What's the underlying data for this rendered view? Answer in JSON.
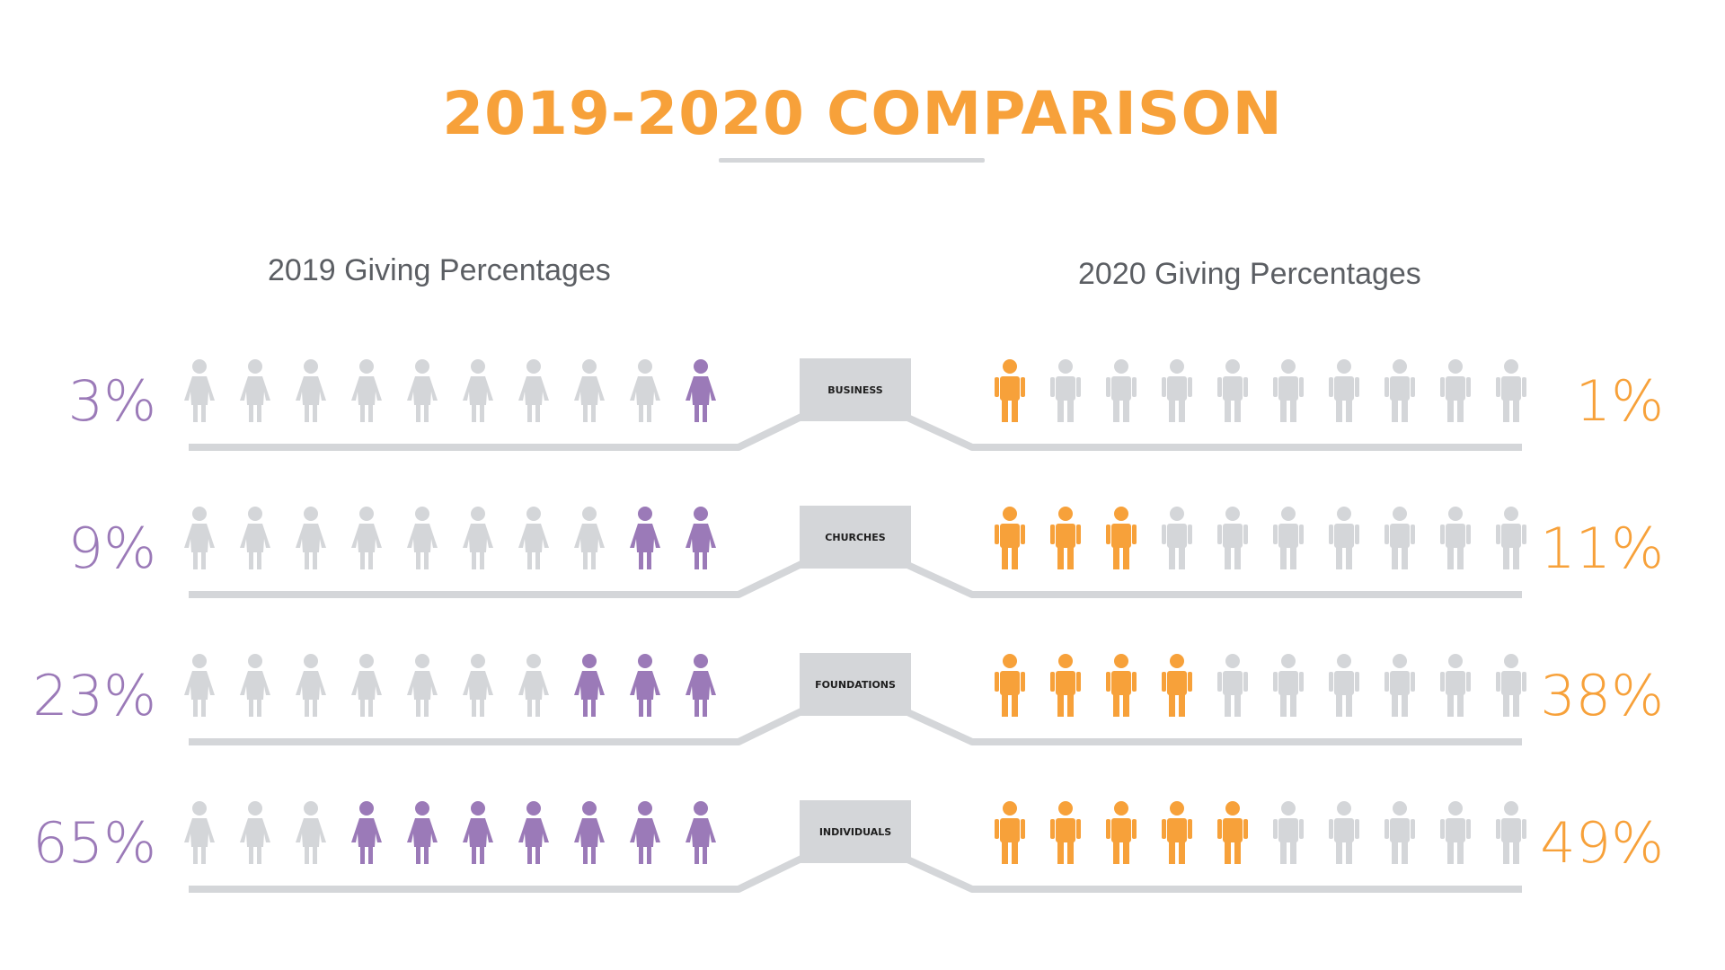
{
  "title": "2019-2020 COMPARISON",
  "colors": {
    "title": "#f7a13a",
    "purple": "#9b7ab8",
    "orange": "#f7a13a",
    "gray": "#d4d6d9",
    "label_box": "#d4d6d9",
    "subtitle": "#5b5e63"
  },
  "left_subtitle": "2019 Giving Percentages",
  "right_subtitle": "2020 Giving Percentages",
  "chart_data": {
    "type": "pictograph",
    "title": "2019-2020 COMPARISON",
    "icons_per_row": 10,
    "categories": [
      "BUSINESS",
      "CHURCHES",
      "FOUNDATIONS",
      "INDIVIDUALS"
    ],
    "series": [
      {
        "name": "2019 Giving Percentages",
        "values": [
          3,
          9,
          23,
          65
        ],
        "labels": [
          "3%",
          "9%",
          "23%",
          "65%"
        ],
        "highlighted_icons": [
          1,
          2,
          3,
          7
        ],
        "icon": "female-figure-icon",
        "color": "#9b7ab8"
      },
      {
        "name": "2020 Giving Percentages",
        "values": [
          1,
          11,
          38,
          49
        ],
        "labels": [
          "1%",
          "11%",
          "38%",
          "49%"
        ],
        "highlighted_icons": [
          1,
          3,
          4,
          5
        ],
        "icon": "male-figure-icon",
        "color": "#f7a13a"
      }
    ]
  }
}
